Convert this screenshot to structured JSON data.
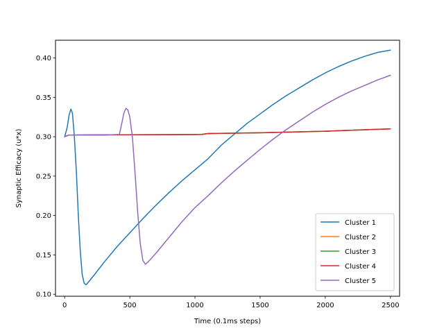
{
  "chart_data": {
    "type": "line",
    "title": "",
    "xlabel": "Time (0.1ms steps)",
    "ylabel": "Synaptic Efficacy (u*x)",
    "xlim": [
      -70,
      2570
    ],
    "ylim": [
      0.0975,
      0.4225
    ],
    "xticks": [
      0,
      500,
      1000,
      1500,
      2000,
      2500
    ],
    "xtick_labels": [
      "0",
      "500",
      "1000",
      "1500",
      "2000",
      "2500"
    ],
    "yticks": [
      0.1,
      0.15,
      0.2,
      0.25,
      0.3,
      0.35,
      0.4
    ],
    "ytick_labels": [
      "0.10",
      "0.15",
      "0.20",
      "0.25",
      "0.30",
      "0.35",
      "0.40"
    ],
    "grid": false,
    "legend_position": "lower-right",
    "series": [
      {
        "name": "Cluster 1",
        "color": "#1f77b4",
        "x": [
          0,
          20,
          35,
          48,
          60,
          75,
          90,
          105,
          120,
          135,
          150,
          165,
          180,
          220,
          300,
          400,
          500,
          600,
          700,
          800,
          900,
          1000,
          1100,
          1200,
          1300,
          1400,
          1500,
          1600,
          1700,
          1800,
          1900,
          2000,
          2100,
          2200,
          2300,
          2400,
          2500
        ],
        "y": [
          0.3,
          0.312,
          0.328,
          0.335,
          0.33,
          0.3,
          0.255,
          0.2,
          0.155,
          0.125,
          0.114,
          0.112,
          0.115,
          0.123,
          0.14,
          0.16,
          0.178,
          0.196,
          0.213,
          0.229,
          0.244,
          0.258,
          0.272,
          0.289,
          0.303,
          0.317,
          0.329,
          0.341,
          0.352,
          0.362,
          0.372,
          0.381,
          0.389,
          0.396,
          0.402,
          0.407,
          0.41
        ]
      },
      {
        "name": "Cluster 2",
        "color": "#ff7f0e",
        "x": [
          0,
          30,
          100,
          500,
          1000,
          1050,
          1100,
          1500,
          2000,
          2500
        ],
        "y": [
          0.3,
          0.302,
          0.3022,
          0.3025,
          0.3028,
          0.303,
          0.304,
          0.305,
          0.307,
          0.31
        ]
      },
      {
        "name": "Cluster 3",
        "color": "#2ca02c",
        "x": [
          0,
          30,
          100,
          500,
          1000,
          1050,
          1100,
          1500,
          2000,
          2500
        ],
        "y": [
          0.3,
          0.302,
          0.3022,
          0.3025,
          0.3028,
          0.303,
          0.304,
          0.305,
          0.307,
          0.31
        ]
      },
      {
        "name": "Cluster 4",
        "color": "#d62728",
        "x": [
          0,
          30,
          100,
          500,
          1000,
          1050,
          1100,
          1500,
          2000,
          2500
        ],
        "y": [
          0.3,
          0.302,
          0.3022,
          0.3025,
          0.3028,
          0.303,
          0.304,
          0.305,
          0.307,
          0.31
        ]
      },
      {
        "name": "Cluster 5",
        "color": "#9467bd",
        "x": [
          0,
          30,
          100,
          300,
          420,
          440,
          455,
          470,
          485,
          500,
          520,
          540,
          560,
          580,
          600,
          620,
          640,
          700,
          800,
          900,
          1000,
          1100,
          1200,
          1300,
          1400,
          1500,
          1600,
          1700,
          1800,
          1900,
          2000,
          2100,
          2200,
          2300,
          2400,
          2500
        ],
        "y": [
          0.3,
          0.302,
          0.302,
          0.302,
          0.303,
          0.318,
          0.33,
          0.336,
          0.334,
          0.325,
          0.3,
          0.255,
          0.205,
          0.165,
          0.143,
          0.138,
          0.141,
          0.152,
          0.172,
          0.192,
          0.21,
          0.225,
          0.241,
          0.256,
          0.27,
          0.284,
          0.297,
          0.309,
          0.32,
          0.331,
          0.341,
          0.35,
          0.358,
          0.365,
          0.372,
          0.378
        ]
      }
    ]
  }
}
